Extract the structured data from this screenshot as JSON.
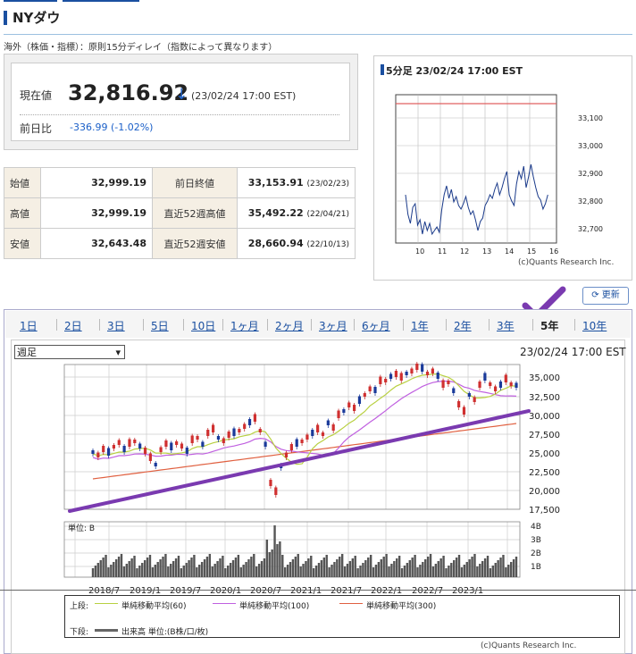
{
  "header": {
    "title": "NYダウ",
    "note": "海外（株価・指標）：原則15分ディレイ（指数によって異なります）"
  },
  "price": {
    "current_label": "現在値",
    "current_value": "32,816.92",
    "arrow": "↓",
    "timestamp": "(23/02/24 17:00 EST)",
    "change_label": "前日比",
    "change_value": "-336.99 (-1.02%)"
  },
  "ohlc": [
    {
      "l1": "始値",
      "v1": "32,999.19",
      "l2": "前日終値",
      "v2": "33,153.91",
      "d2": "(23/02/23)"
    },
    {
      "l1": "高値",
      "v1": "32,999.19",
      "l2": "直近52週高値",
      "v2": "35,492.22",
      "d2": "(22/04/21)"
    },
    {
      "l1": "安値",
      "v1": "32,643.48",
      "l2": "直近52週安値",
      "v2": "28,660.94",
      "d2": "(22/10/13)"
    }
  ],
  "mini_chart": {
    "title": "5分足 23/02/24 17:00 EST",
    "y_ticks": [
      "33,100",
      "33,000",
      "32,900",
      "32,800",
      "32,700"
    ],
    "x_ticks": [
      "10",
      "11",
      "12",
      "13",
      "14",
      "15",
      "16"
    ],
    "credit": "(c)Quants Research Inc."
  },
  "refresh_label": "更新",
  "tabs": [
    "1日",
    "2日",
    "3日",
    "5日",
    "10日",
    "1ヶ月",
    "2ヶ月",
    "3ヶ月",
    "6ヶ月",
    "1年",
    "2年",
    "3年",
    "5年",
    "10年"
  ],
  "selected_tab": "5年",
  "period_select": "週足",
  "chart_datetime": "23/02/24 17:00 EST",
  "main_chart": {
    "y_ticks": [
      "35,000",
      "32,500",
      "30,000",
      "27,500",
      "25,000",
      "22,500",
      "20,000",
      "17,500"
    ],
    "vol_ticks": [
      "4B",
      "3B",
      "2B",
      "1B"
    ],
    "vol_unit": "単位: B",
    "x_ticks": [
      "2018/7",
      "2019/1",
      "2019/7",
      "2020/1",
      "2020/7",
      "2021/1",
      "2021/7",
      "2022/1",
      "2022/7",
      "2023/1"
    ]
  },
  "legend": {
    "upper_label": "上段:",
    "ma60": "単純移動平均(60)",
    "ma100": "単純移動平均(100)",
    "ma300": "単純移動平均(300)",
    "lower_label": "下段:",
    "volume": "出来高 単位:(B株/口/枚)",
    "colors": {
      "ma60": "#b8d040",
      "ma100": "#c060e0",
      "ma300": "#e06040",
      "volume": "#666666",
      "trend": "#7a3ab0"
    }
  },
  "credit": "(c)Quants Research Inc."
}
